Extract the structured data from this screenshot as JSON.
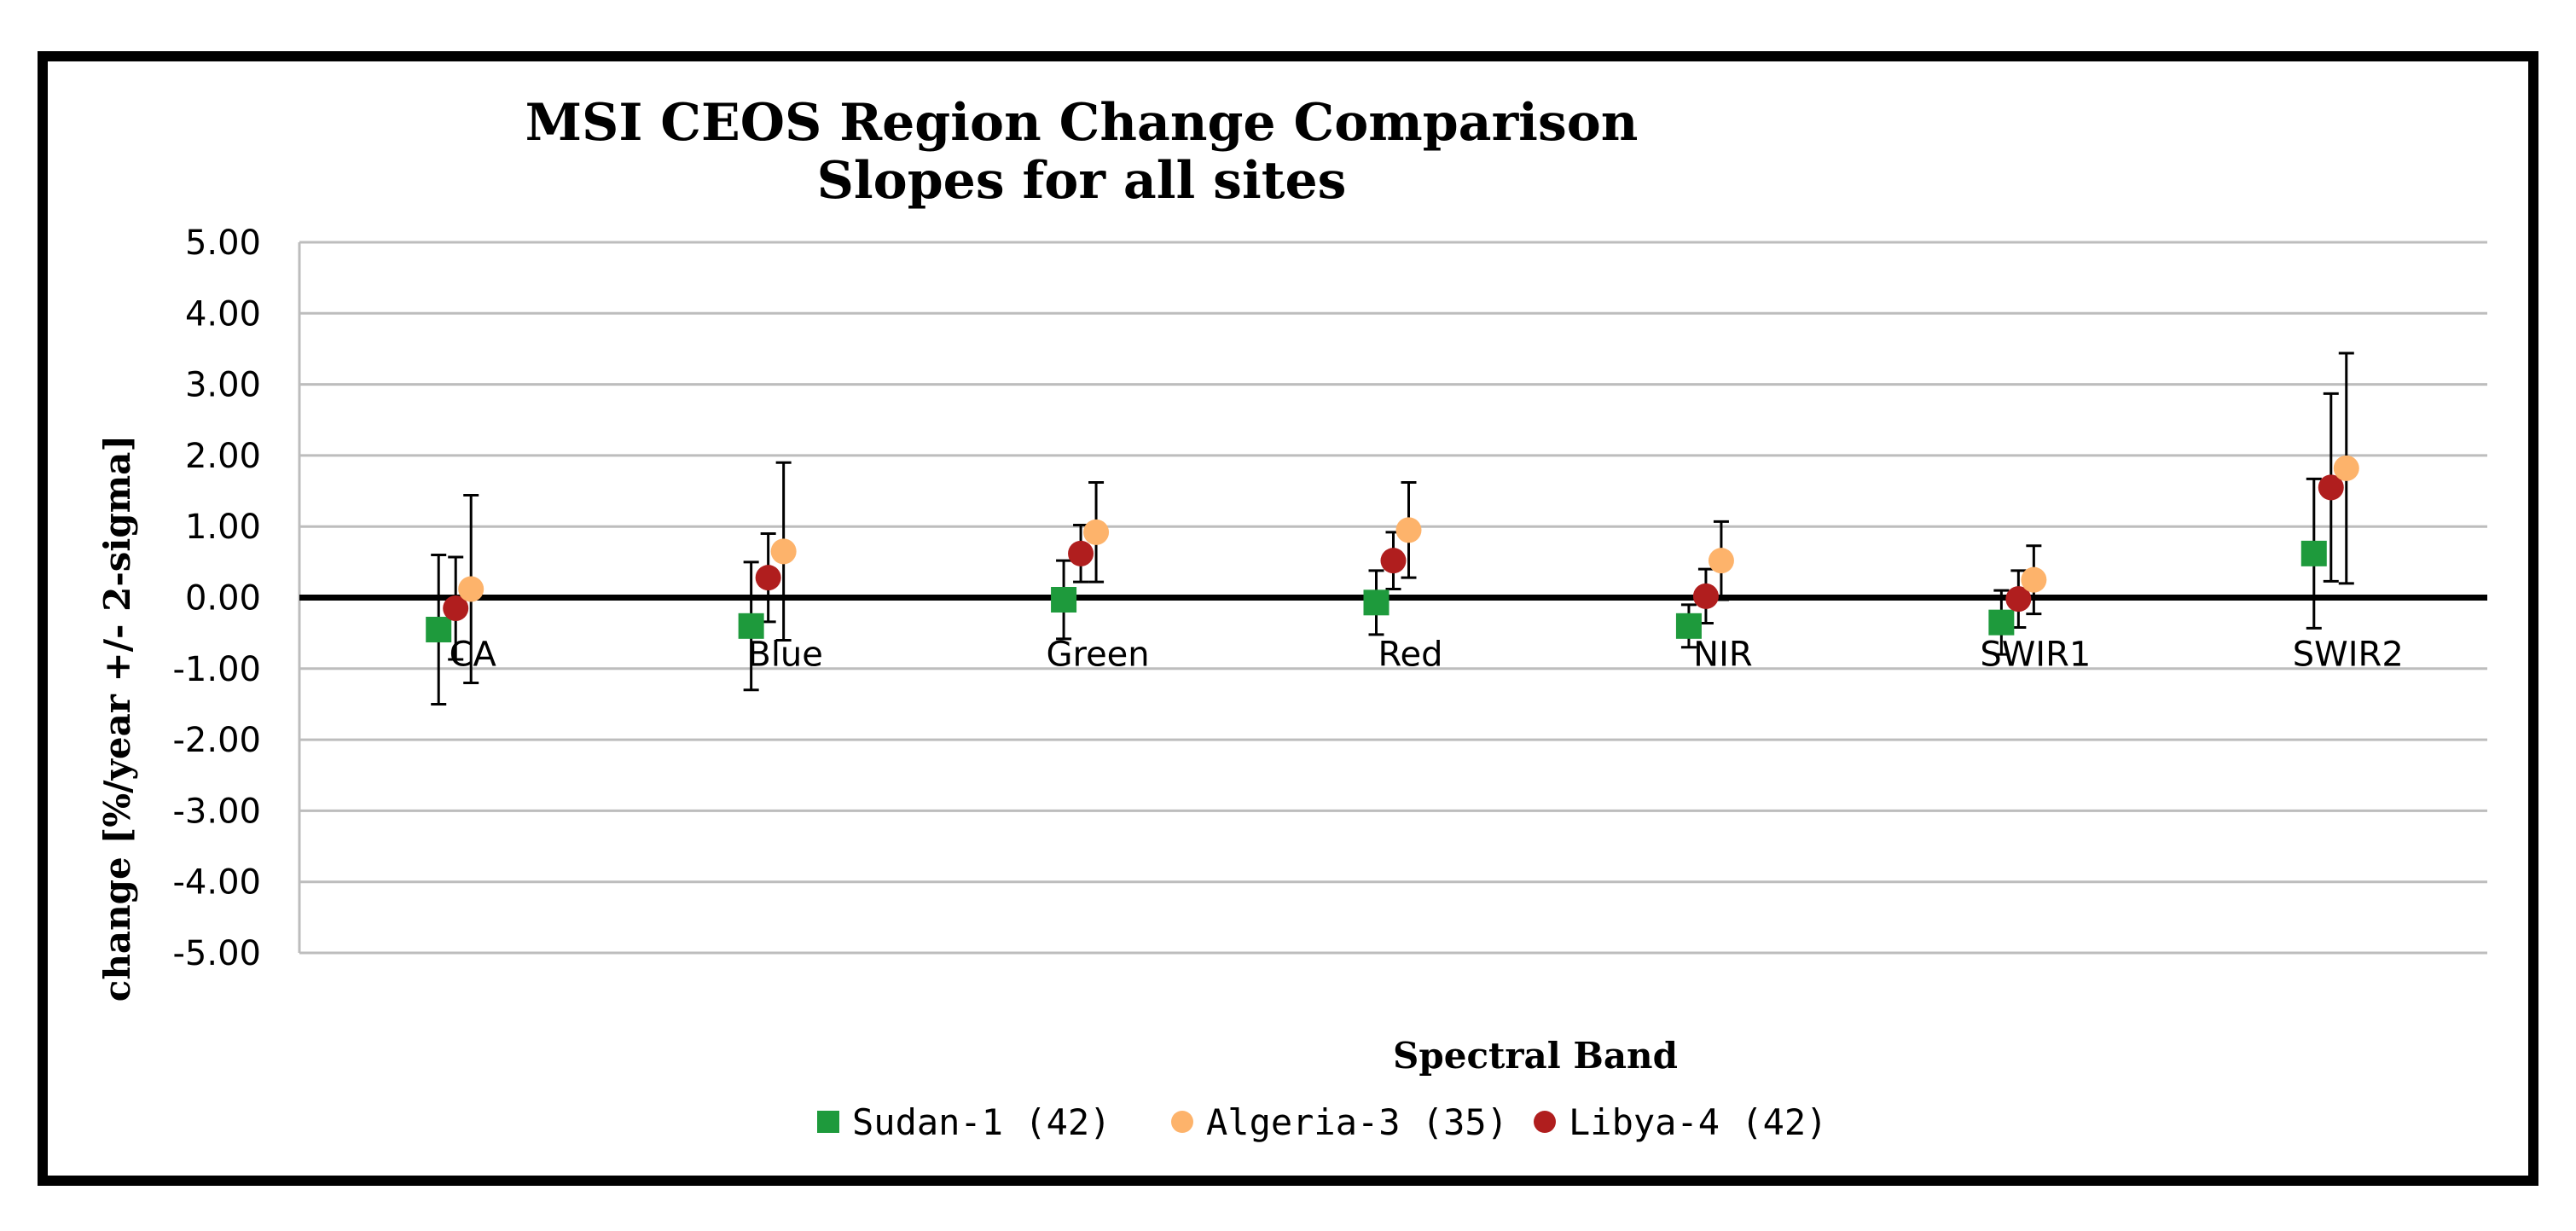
{
  "chart_data": {
    "type": "scatter",
    "title": [
      "MSI CEOS Region Change Comparison",
      "Slopes for all sites"
    ],
    "xlabel": "Spectral Band",
    "ylabel": "change [%/year +/- 2-sigma]",
    "ylim": [
      -5,
      5
    ],
    "yticks": [
      "5.00",
      "4.00",
      "3.00",
      "2.00",
      "1.00",
      "0.00",
      "-1.00",
      "-2.00",
      "-3.00",
      "-4.00",
      "-5.00"
    ],
    "ytick_values": [
      5,
      4,
      3,
      2,
      1,
      0,
      -1,
      -2,
      -3,
      -4,
      -5
    ],
    "categories": [
      "CA",
      "Blue",
      "Green",
      "Red",
      "NIR",
      "SWIR1",
      "SWIR2"
    ],
    "grid": true,
    "legend_position": "bottom",
    "series": [
      {
        "name": "Sudan-1 (42)",
        "marker": "square",
        "color": "#1e9a3c",
        "values": [
          -0.45,
          -0.4,
          -0.03,
          -0.07,
          -0.4,
          -0.35,
          0.62
        ],
        "errors": [
          1.05,
          0.9,
          0.55,
          0.45,
          0.3,
          0.45,
          1.05
        ]
      },
      {
        "name": "Algeria-3 (35)",
        "marker": "circle",
        "color": "#fdb36b",
        "values": [
          0.12,
          0.65,
          0.92,
          0.95,
          0.52,
          0.25,
          1.82
        ],
        "errors": [
          1.32,
          1.25,
          0.7,
          0.67,
          0.55,
          0.48,
          1.62
        ]
      },
      {
        "name": "Libya-4 (42)",
        "marker": "circle",
        "color": "#b01e1e",
        "values": [
          -0.15,
          0.28,
          0.62,
          0.52,
          0.02,
          -0.02,
          1.55
        ],
        "errors": [
          0.72,
          0.62,
          0.4,
          0.4,
          0.38,
          0.4,
          1.32
        ]
      }
    ]
  }
}
